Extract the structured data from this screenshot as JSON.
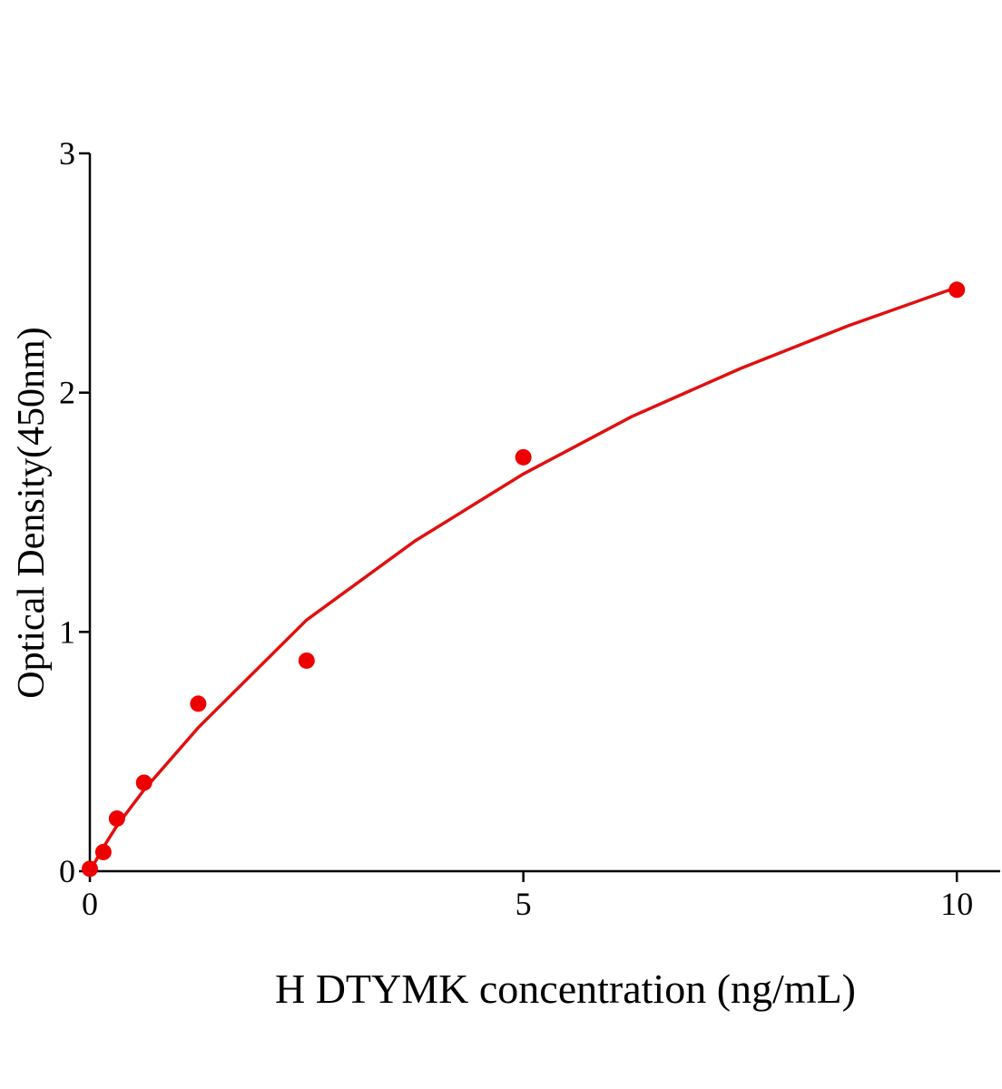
{
  "chart_data": {
    "type": "scatter",
    "x_label": "H DTYMK concentration (ng/mL)",
    "y_label": "Optical Density(450nm)",
    "xlim": [
      0,
      10.5
    ],
    "xticks": [
      0,
      5,
      10
    ],
    "ylim": [
      0,
      3
    ],
    "yticks": [
      0,
      1,
      2,
      3
    ],
    "series": [
      {
        "mode": "markers",
        "color": "#ee0000",
        "x": [
          0,
          0.156,
          0.3125,
          0.625,
          1.25,
          2.5,
          5,
          10
        ],
        "values": [
          0.01,
          0.08,
          0.22,
          0.37,
          0.7,
          0.88,
          1.73,
          2.43
        ]
      },
      {
        "mode": "line",
        "color": "#e01010",
        "x": [
          0,
          0.156,
          0.3125,
          0.625,
          1.25,
          2.5,
          3.75,
          5,
          6.25,
          7.5,
          8.75,
          10
        ],
        "values": [
          0,
          0.1,
          0.19,
          0.34,
          0.6,
          1.05,
          1.38,
          1.66,
          1.9,
          2.1,
          2.28,
          2.44
        ]
      }
    ]
  }
}
